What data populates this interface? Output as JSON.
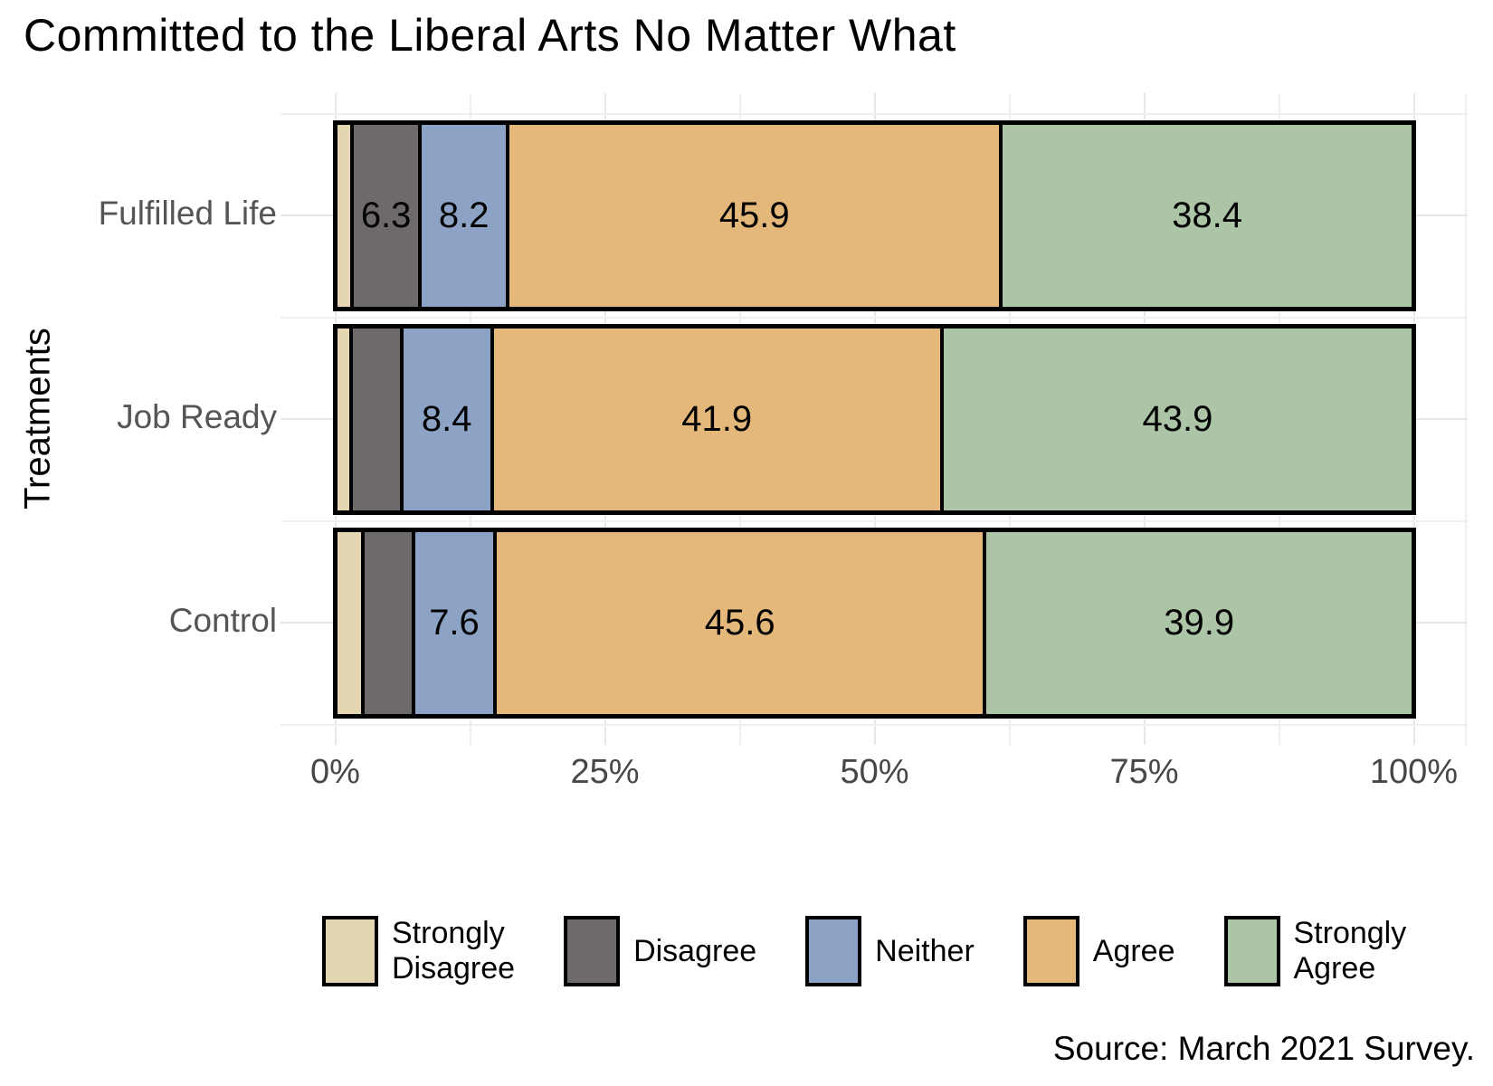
{
  "title": "Committed to the Liberal Arts No Matter What",
  "y_axis_title": "Treatments",
  "source_note": "Source: March 2021 Survey.",
  "colors": {
    "strongly_disagree": "#E5D6B3",
    "disagree": "#6F6A6A",
    "neither": "#8CA3C6",
    "agree": "#E4B77B",
    "strongly_agree": "#ADC5A7",
    "grid_major": "#e7e7e7",
    "grid_minor": "#efefef",
    "axis_text": "#474747",
    "category_text": "#555555",
    "bar_border": "#000000"
  },
  "chart_data": {
    "type": "bar",
    "orientation": "horizontal",
    "stacked": true,
    "title": "Committed to the Liberal Arts No Matter What",
    "ylabel": "Treatments",
    "xlabel": "",
    "xlim": [
      0,
      100
    ],
    "x_tick_labels": [
      "0%",
      "25%",
      "50%",
      "75%",
      "100%"
    ],
    "x_major_ticks": [
      0,
      25,
      50,
      75,
      100
    ],
    "x_minor_ticks": [
      12.5,
      37.5,
      62.5,
      87.5
    ],
    "grid": true,
    "legend_position": "bottom",
    "categories": [
      "Fulfilled Life",
      "Job Ready",
      "Control"
    ],
    "series": [
      {
        "name": "Strongly Disagree",
        "color": "#E5D6B3",
        "values": [
          1.2,
          1.1,
          2.2
        ]
      },
      {
        "name": "Disagree",
        "color": "#6F6A6A",
        "values": [
          6.3,
          4.7,
          4.7
        ]
      },
      {
        "name": "Neither",
        "color": "#8CA3C6",
        "values": [
          8.2,
          8.4,
          7.6
        ]
      },
      {
        "name": "Agree",
        "color": "#E4B77B",
        "values": [
          45.9,
          41.9,
          45.6
        ]
      },
      {
        "name": "Strongly Agree",
        "color": "#ADC5A7",
        "values": [
          38.4,
          43.9,
          39.9
        ]
      }
    ],
    "data_labels": [
      [
        "",
        "6.3",
        "8.2",
        "45.9",
        "38.4"
      ],
      [
        "",
        "",
        "8.4",
        "41.9",
        "43.9"
      ],
      [
        "",
        "",
        "7.6",
        "45.6",
        "39.9"
      ]
    ],
    "note": "values without visible labels are estimated from bar widths"
  },
  "legend": [
    {
      "lines": [
        "Strongly",
        "Disagree"
      ],
      "color": "#E5D6B3"
    },
    {
      "lines": [
        "Disagree"
      ],
      "color": "#6F6A6A"
    },
    {
      "lines": [
        "Neither"
      ],
      "color": "#8CA3C6"
    },
    {
      "lines": [
        "Agree"
      ],
      "color": "#E4B77B"
    },
    {
      "lines": [
        "Strongly",
        "Agree"
      ],
      "color": "#ADC5A7"
    }
  ]
}
